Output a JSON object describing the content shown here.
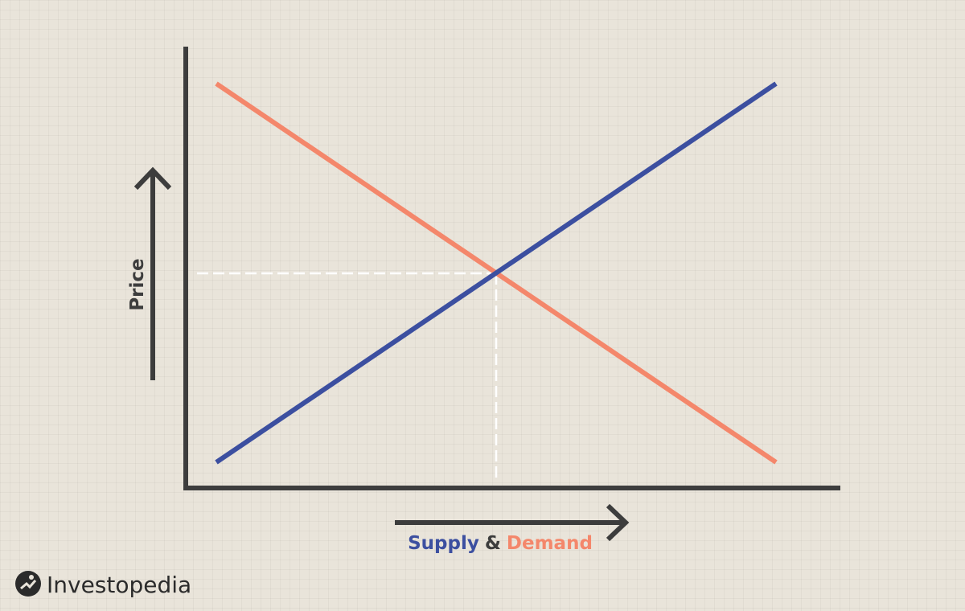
{
  "diagram": {
    "y_axis_label": "Price",
    "x_axis_label": {
      "supply": "Supply",
      "and": "&",
      "demand": "Demand"
    }
  },
  "logo": {
    "text": "Investopedia"
  }
}
